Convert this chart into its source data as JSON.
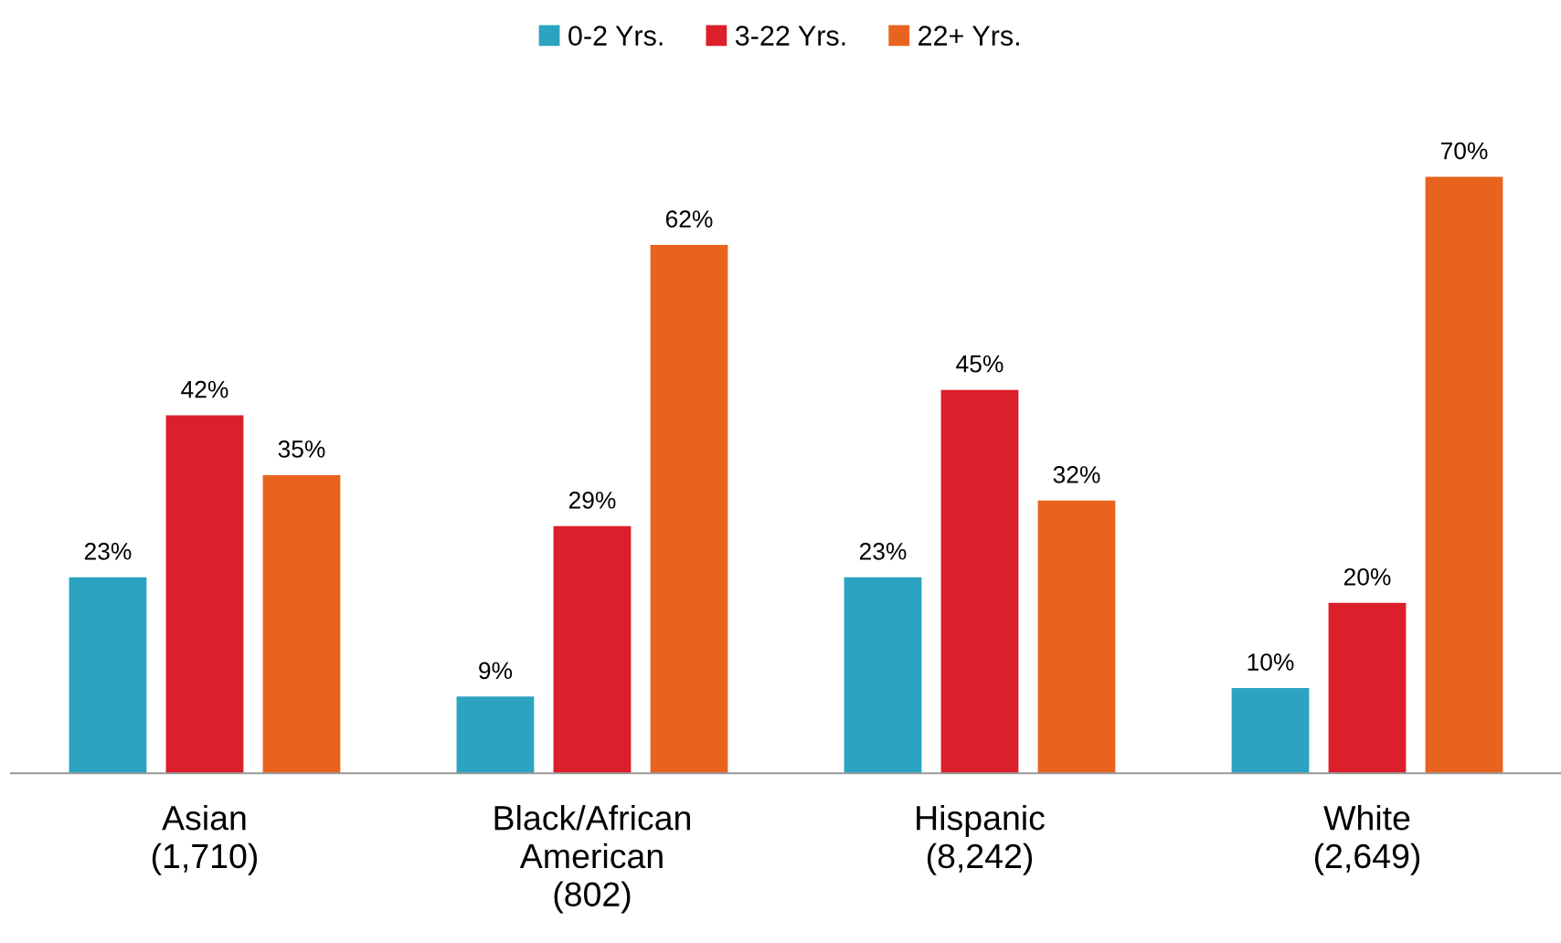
{
  "chart_data": {
    "type": "bar",
    "categories": [
      "Asian\n(1,710)",
      "Black/African\nAmerican\n(802)",
      "Hispanic\n(8,242)",
      "White\n(2,649)"
    ],
    "series": [
      {
        "name": "0-2 Yrs.",
        "color": "#2ca3c0",
        "values": [
          23,
          9,
          23,
          10
        ],
        "value_labels": [
          "23%",
          "9%",
          "23%",
          "10%"
        ]
      },
      {
        "name": "3-22 Yrs.",
        "color": "#db1f2b",
        "values": [
          42,
          29,
          45,
          20
        ],
        "value_labels": [
          "42%",
          "29%",
          "45%",
          "20%"
        ]
      },
      {
        "name": "22+ Yrs.",
        "color": "#e8641e",
        "values": [
          35,
          62,
          32,
          70
        ],
        "value_labels": [
          "35%",
          "62%",
          "32%",
          "70%"
        ]
      }
    ],
    "legend": "top",
    "grid": false,
    "tick_labels": "x"
  }
}
